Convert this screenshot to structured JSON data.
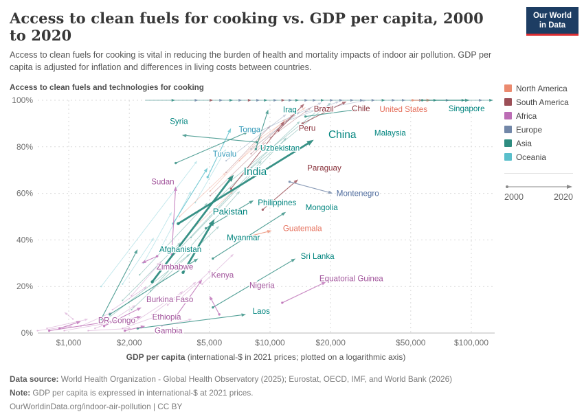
{
  "header": {
    "title": "Access to clean fuels for cooking vs. GDP per capita, 2000 to 2020",
    "subtitle": "Access to clean fuels for cooking is vital in reducing the burden of health and mortality impacts of indoor air pollution. GDP per capita is adjusted for inflation and differences in living costs between countries.",
    "logo": {
      "line1": "Our World",
      "line2": "in Data"
    }
  },
  "chart": {
    "heading": "Access to clean fuels and technologies for cooking",
    "x_axis": {
      "title_bold": "GDP per capita",
      "title_rest": " (international-$ in 2021 prices; plotted on a logarithmic axis)",
      "ticks": [
        {
          "v": 1000,
          "label": "$1,000"
        },
        {
          "v": 2000,
          "label": "$2,000"
        },
        {
          "v": 5000,
          "label": "$5,000"
        },
        {
          "v": 10000,
          "label": "$10,000"
        },
        {
          "v": 20000,
          "label": "$20,000"
        },
        {
          "v": 50000,
          "label": "$50,000"
        },
        {
          "v": 100000,
          "label": "$100,000"
        }
      ]
    },
    "y_axis": {
      "ticks": [
        {
          "v": 0,
          "label": "0%"
        },
        {
          "v": 20,
          "label": "20%"
        },
        {
          "v": 40,
          "label": "40%"
        },
        {
          "v": 60,
          "label": "60%"
        },
        {
          "v": 80,
          "label": "80%"
        },
        {
          "v": 100,
          "label": "100%"
        }
      ]
    }
  },
  "legend": {
    "items": [
      {
        "label": "North America",
        "continent": "NA"
      },
      {
        "label": "South America",
        "continent": "SA"
      },
      {
        "label": "Africa",
        "continent": "AF"
      },
      {
        "label": "Europe",
        "continent": "EU"
      },
      {
        "label": "Asia",
        "continent": "AS"
      },
      {
        "label": "Oceania",
        "continent": "OC"
      }
    ],
    "time": {
      "start": "2000",
      "end": "2020"
    }
  },
  "footer": {
    "source_label": "Data source:",
    "source_text": " World Health Organization - Global Health Observatory (2025); Eurostat, OECD, IMF, and World Bank (2026)",
    "note_label": "Note:",
    "note_text": " GDP per capita is expressed in international-$ at 2021 prices.",
    "link": "OurWorldinData.org/indoor-air-pollution | CC BY"
  },
  "chart_data": {
    "type": "scatter",
    "title": "Access to clean fuels for cooking vs. GDP per capita, 2000 to 2020",
    "xlabel": "GDP per capita (international-$ in 2021 prices; plotted on a logarithmic axis)",
    "ylabel": "Access to clean fuels and technologies for cooking",
    "x_scale": "log",
    "xlim": [
      700,
      130000
    ],
    "ylim": [
      0,
      100
    ],
    "grid": "dashed",
    "legend_position": "right",
    "years": [
      2000,
      2020
    ],
    "colors": {
      "NA": {
        "line": "#EB8A6F",
        "label": "#E56E5A"
      },
      "SA": {
        "line": "#9C4F57",
        "label": "#883039"
      },
      "AF": {
        "line": "#BC6DB5",
        "label": "#A2559C"
      },
      "EU": {
        "line": "#7287A8",
        "label": "#4C6A9C"
      },
      "AS": {
        "line": "#2E8C80",
        "label": "#00847E"
      },
      "OC": {
        "line": "#5ABFCB",
        "label": "#2E97B7"
      }
    },
    "series": [
      {
        "name": "Iraq",
        "c": "AS",
        "p0": [
          8500,
          79
        ],
        "p1": [
          9800,
          96
        ],
        "label_at": [
          11600,
          96
        ]
      },
      {
        "name": "Brazil",
        "c": "SA",
        "p0": [
          11000,
          87
        ],
        "p1": [
          14800,
          98.5
        ],
        "label_at": [
          16500,
          96.3
        ]
      },
      {
        "name": "Chile",
        "c": "SA",
        "p0": [
          14500,
          90
        ],
        "p1": [
          24000,
          99.5
        ],
        "label_at": [
          25500,
          96.5
        ]
      },
      {
        "name": "United States",
        "c": "NA",
        "p0": [
          51000,
          100
        ],
        "p1": [
          63000,
          100
        ],
        "label_at": [
          35000,
          96.2
        ]
      },
      {
        "name": "Singapore",
        "c": "AS",
        "p0": [
          57000,
          100
        ],
        "p1": [
          98000,
          100
        ],
        "label_at": [
          77000,
          96.4
        ]
      },
      {
        "name": "Peru",
        "c": "SA",
        "p0": [
          6400,
          62
        ],
        "p1": [
          11800,
          91
        ],
        "label_at": [
          13900,
          88
        ]
      },
      {
        "name": "Syria",
        "c": "AS",
        "p0": [
          8600,
          82
        ],
        "p1": [
          3650,
          85
        ],
        "label_at": [
          3180,
          91
        ]
      },
      {
        "name": "Tonga",
        "c": "OC",
        "p0": [
          4900,
          67
        ],
        "p1": [
          6400,
          88
        ],
        "label_at": [
          7000,
          87.5
        ]
      },
      {
        "name": "Tuvalu",
        "c": "OC",
        "p0": [
          3300,
          47
        ],
        "p1": [
          4900,
          71
        ],
        "label_at": [
          5200,
          77
        ]
      },
      {
        "name": "Uzbekistan",
        "c": "AS",
        "p0": [
          3400,
          73
        ],
        "p1": [
          7800,
          86.5
        ],
        "label_at": [
          8950,
          79.5
        ]
      },
      {
        "name": "Sudan",
        "c": "AF",
        "p0": [
          3250,
          34
        ],
        "p1": [
          3400,
          63
        ],
        "label_at": [
          2570,
          65
        ]
      },
      {
        "name": "India",
        "c": "AS",
        "p0": [
          2600,
          22
        ],
        "p1": [
          6600,
          68
        ],
        "bold": true,
        "big": true,
        "label_at": [
          7400,
          69
        ]
      },
      {
        "name": "China",
        "c": "AS",
        "p0": [
          3500,
          47
        ],
        "p1": [
          16500,
          83
        ],
        "bold": true,
        "big": true,
        "label_at": [
          19500,
          85
        ]
      },
      {
        "name": "Pakistan",
        "c": "AS",
        "p0": [
          3700,
          26
        ],
        "p1": [
          5300,
          49
        ],
        "bold": true,
        "mid": true,
        "label_at": [
          5200,
          52
        ]
      },
      {
        "name": "Paraguay",
        "c": "SA",
        "p0": [
          9200,
          53
        ],
        "p1": [
          13800,
          66
        ],
        "label_at": [
          15300,
          71
        ]
      },
      {
        "name": "Montenegro",
        "c": "EU",
        "p0": [
          12500,
          65
        ],
        "p1": [
          20500,
          60
        ],
        "label_at": [
          21400,
          60
        ]
      },
      {
        "name": "Philippines",
        "c": "AS",
        "p0": [
          4800,
          45
        ],
        "p1": [
          8300,
          57
        ],
        "label_at": [
          8700,
          56
        ]
      },
      {
        "name": "Mongolia",
        "c": "AS",
        "p0": [
          5200,
          32
        ],
        "p1": [
          12000,
          52
        ],
        "label_at": [
          15000,
          54
        ]
      },
      {
        "name": "Guatemala",
        "c": "NA",
        "p0": [
          7400,
          41
        ],
        "p1": [
          10200,
          44
        ],
        "label_at": [
          11600,
          45
        ]
      },
      {
        "name": "Myanmar",
        "c": "AS",
        "p0": [
          1600,
          8
        ],
        "p1": [
          4400,
          32
        ],
        "label_at": [
          6100,
          41
        ]
      },
      {
        "name": "Afghanistan",
        "c": "AS",
        "p0": [
          1450,
          6
        ],
        "p1": [
          2200,
          36
        ],
        "label_at": [
          2820,
          36
        ]
      },
      {
        "name": "Zimbabwe",
        "c": "AF",
        "p0": [
          2750,
          33
        ],
        "p1": [
          2300,
          30
        ],
        "label_at": [
          2730,
          28.5
        ]
      },
      {
        "name": "Kenya",
        "c": "AF",
        "p0": [
          3400,
          7
        ],
        "p1": [
          4600,
          23
        ],
        "label_at": [
          5100,
          25
        ]
      },
      {
        "name": "Sri Lanka",
        "c": "AS",
        "p0": [
          5200,
          11
        ],
        "p1": [
          13400,
          32
        ],
        "label_at": [
          14200,
          33
        ]
      },
      {
        "name": "Equatorial Guinea",
        "c": "AF",
        "p0": [
          11500,
          13
        ],
        "p1": [
          19000,
          22
        ],
        "label_at": [
          17600,
          23.5
        ]
      },
      {
        "name": "Nigeria",
        "c": "AF",
        "p0": [
          5600,
          8
        ],
        "p1": [
          5000,
          16
        ],
        "label_at": [
          7900,
          20.5
        ]
      },
      {
        "name": "Laos",
        "c": "AS",
        "p0": [
          2200,
          2
        ],
        "p1": [
          7600,
          8
        ],
        "label_at": [
          8200,
          9.5
        ]
      },
      {
        "name": "Burkina Faso",
        "c": "AF",
        "p0": [
          1500,
          3
        ],
        "p1": [
          2300,
          11
        ],
        "label_at": [
          2430,
          14.5
        ]
      },
      {
        "name": "Ethiopia",
        "c": "AF",
        "p0": [
          800,
          1
        ],
        "p1": [
          2300,
          7
        ],
        "label_at": [
          2600,
          7
        ]
      },
      {
        "name": "DR Congo",
        "c": "AF",
        "p0": [
          900,
          2
        ],
        "p1": [
          1150,
          5
        ],
        "label_at": [
          1400,
          5.5
        ]
      },
      {
        "name": "Gambia",
        "c": "AF",
        "p0": [
          1900,
          1
        ],
        "p1": [
          2400,
          3
        ],
        "label_at": [
          2670,
          1
        ]
      },
      {
        "name": "Malaysia",
        "c": "AS",
        "p0": [
          15000,
          93
        ],
        "p1": [
          27000,
          96
        ],
        "label_at": [
          33000,
          86
        ]
      }
    ],
    "background_series": [
      [
        "AF",
        700,
        1,
        1050,
        3
      ],
      [
        "AF",
        780,
        2,
        1250,
        6
      ],
      [
        "AF",
        950,
        1,
        1500,
        4
      ],
      [
        "AF",
        1150,
        3,
        1650,
        9
      ],
      [
        "AF",
        1350,
        2,
        1800,
        6
      ],
      [
        "AF",
        1550,
        4,
        2150,
        12
      ],
      [
        "AF",
        1850,
        2,
        2700,
        7
      ],
      [
        "AF",
        2150,
        5,
        3100,
        14
      ],
      [
        "AF",
        2600,
        8,
        3700,
        18
      ],
      [
        "AF",
        1050,
        6,
        950,
        9
      ],
      [
        "AF",
        3100,
        12,
        4300,
        22
      ],
      [
        "AF",
        3600,
        15,
        5100,
        27
      ],
      [
        "AF",
        1650,
        10,
        2450,
        20
      ],
      [
        "AF",
        2050,
        16,
        2900,
        31
      ],
      [
        "AF",
        4600,
        21,
        6600,
        34
      ],
      [
        "AF",
        1250,
        1,
        2050,
        2
      ],
      [
        "AF",
        2900,
        3,
        4100,
        6
      ],
      [
        "AS",
        1500,
        5,
        4000,
        34
      ],
      [
        "AS",
        2050,
        10,
        5600,
        46
      ],
      [
        "AS",
        2550,
        18,
        7100,
        61
      ],
      [
        "AS",
        3050,
        30,
        9100,
        74
      ],
      [
        "AS",
        4050,
        41,
        12100,
        84
      ],
      [
        "AS",
        5100,
        55,
        14100,
        91
      ],
      [
        "AS",
        6100,
        64,
        18100,
        97
      ],
      [
        "AS",
        2250,
        25,
        4900,
        56
      ],
      [
        "AS",
        1850,
        14,
        3600,
        39
      ],
      [
        "AS",
        8100,
        71,
        20100,
        99
      ],
      [
        "OC",
        1850,
        21,
        2650,
        41
      ],
      [
        "OC",
        2850,
        36,
        4050,
        61
      ],
      [
        "OC",
        2350,
        30,
        3250,
        52
      ],
      [
        "OC",
        4250,
        56,
        6050,
        79
      ],
      [
        "OC",
        1450,
        20,
        4350,
        74
      ],
      [
        "NA",
        3550,
        50,
        6050,
        69
      ],
      [
        "NA",
        5050,
        61,
        9050,
        84
      ],
      [
        "NA",
        7050,
        74,
        12050,
        92
      ],
      [
        "NA",
        9050,
        84,
        15050,
        97
      ],
      [
        "NA",
        4050,
        44,
        6550,
        61
      ],
      [
        "SA",
        6050,
        69,
        10050,
        89
      ],
      [
        "SA",
        8050,
        77,
        13050,
        94
      ],
      [
        "SA",
        10050,
        84,
        16050,
        97
      ],
      [
        "SA",
        5050,
        59,
        9550,
        82
      ],
      [
        "EU",
        6050,
        74,
        12050,
        94
      ],
      [
        "EU",
        9050,
        87,
        18050,
        99
      ],
      [
        "EU",
        12050,
        91,
        22050,
        99.5
      ],
      [
        "EU",
        15050,
        95,
        30050,
        100
      ],
      [
        "EU",
        8050,
        79,
        14050,
        95
      ]
    ],
    "top_line": {
      "from": 2400,
      "to": 128000,
      "at": 100
    },
    "top_markers": [
      [
        "AS",
        3300
      ],
      [
        "EU",
        4300
      ],
      [
        "SA",
        5100
      ],
      [
        "EU",
        5700
      ],
      [
        "AS",
        6400
      ],
      [
        "EU",
        7100
      ],
      [
        "SA",
        7900
      ],
      [
        "EU",
        8700
      ],
      [
        "AS",
        9500
      ],
      [
        "EU",
        10600
      ],
      [
        "SA",
        11600
      ],
      [
        "EU",
        12600
      ],
      [
        "AS",
        13600
      ],
      [
        "EU",
        15100
      ],
      [
        "EU",
        16600
      ],
      [
        "AS",
        18200
      ],
      [
        "EU",
        20200
      ],
      [
        "EU",
        22500
      ],
      [
        "EU",
        25500
      ],
      [
        "EU",
        28500
      ],
      [
        "EU",
        32500
      ],
      [
        "AS",
        36500
      ],
      [
        "EU",
        41000
      ],
      [
        "EU",
        46000
      ],
      [
        "EU",
        56000
      ],
      [
        "AS",
        66000
      ],
      [
        "EU",
        76000
      ],
      [
        "AS",
        91000
      ],
      [
        "EU",
        111000
      ],
      [
        "AS",
        125000
      ]
    ]
  }
}
